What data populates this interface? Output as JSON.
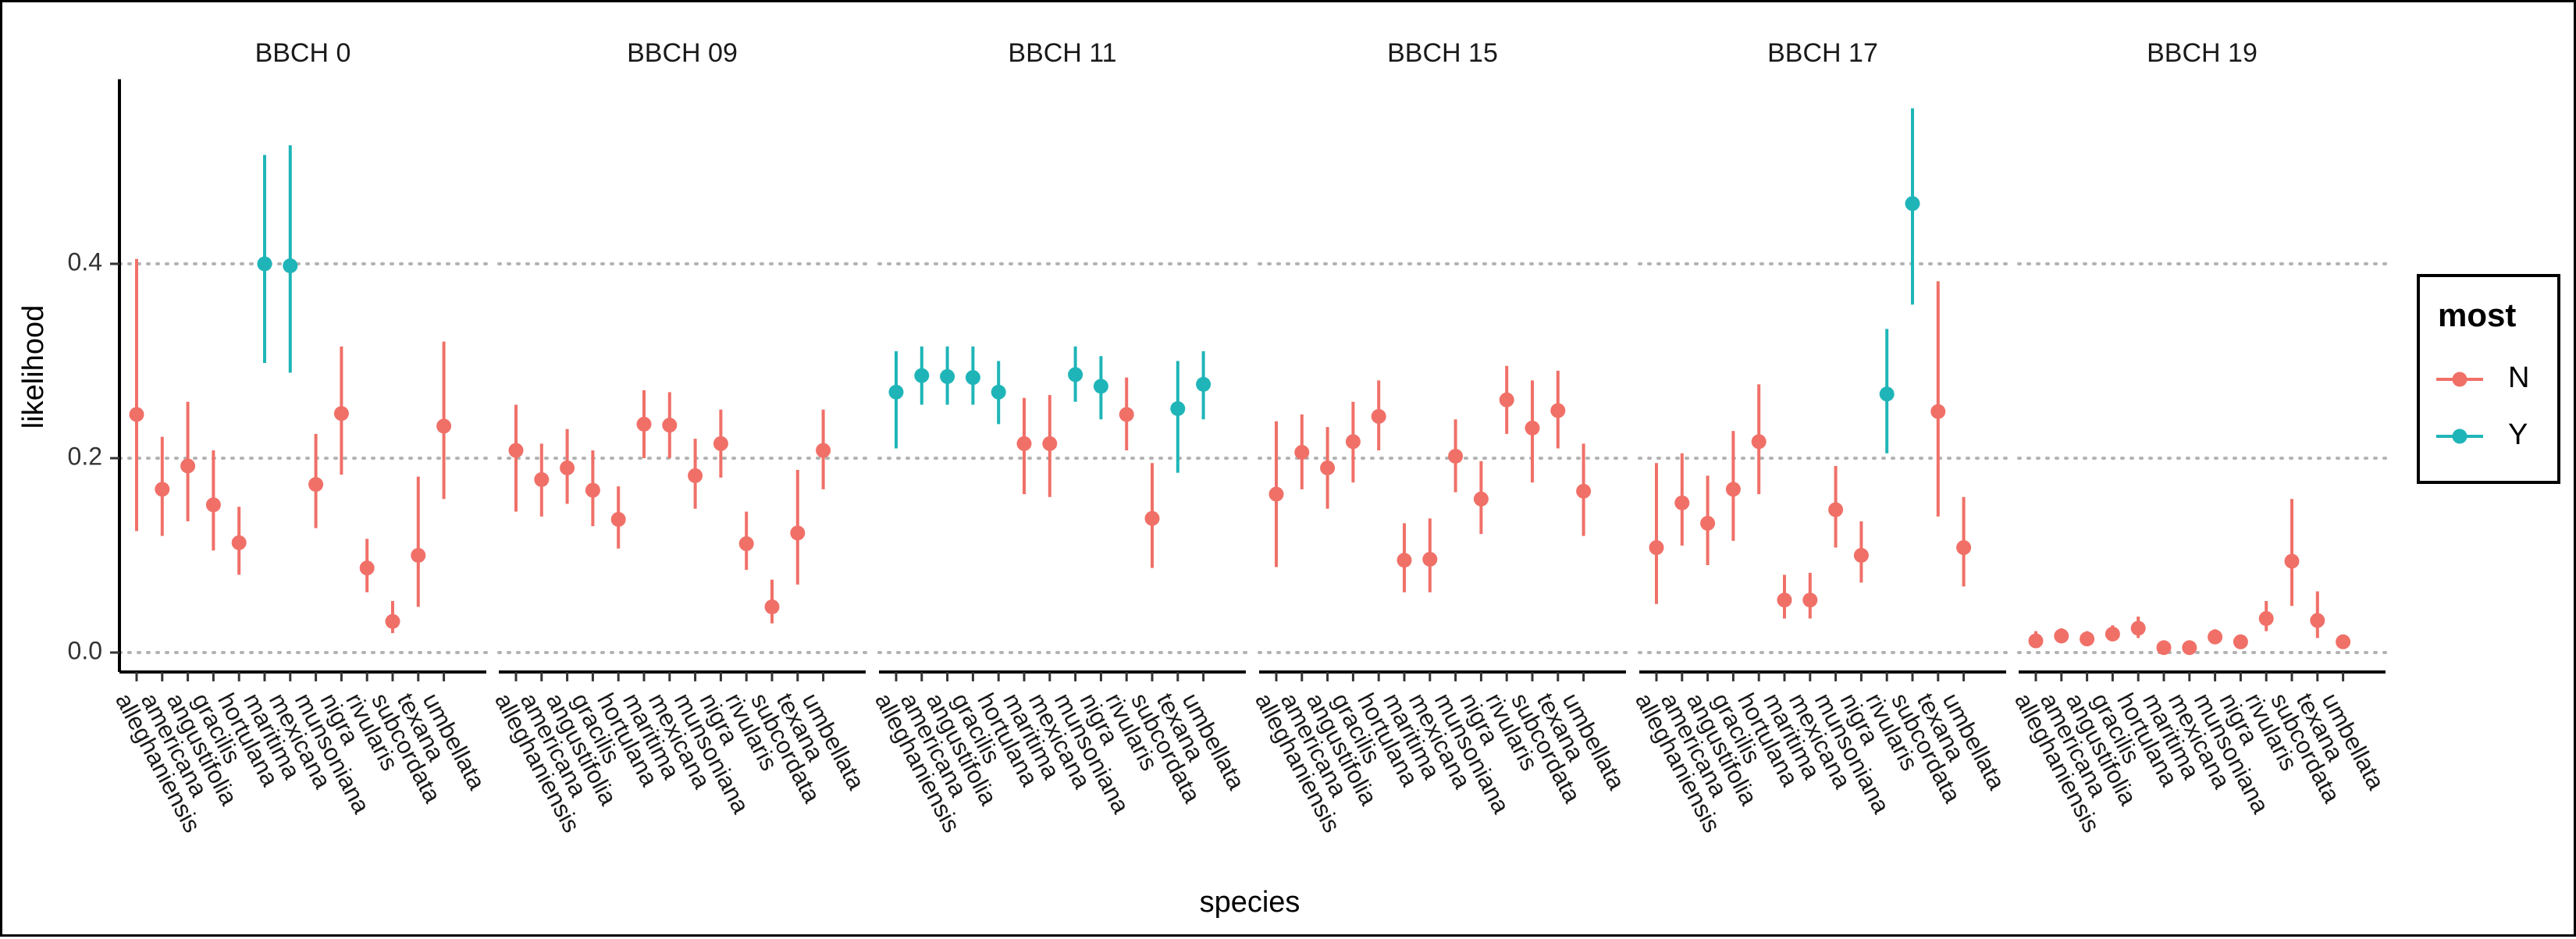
{
  "chart_data": {
    "type": "scatter",
    "xlabel": "species",
    "ylabel": "likelihood",
    "ylim": [
      -0.02,
      0.59
    ],
    "yticks": [
      "0.0",
      "0.2",
      "0.4"
    ],
    "ytick_values": [
      0.0,
      0.2,
      0.4
    ],
    "grid": "horizontal dotted at y ticks",
    "species": [
      "alleghaniensis",
      "americana",
      "angustifolia",
      "gracilis",
      "hortulana",
      "maritima",
      "mexicana",
      "munsoniana",
      "nigra",
      "rivularis",
      "subcordata",
      "texana",
      "umbellata"
    ],
    "legend": {
      "title": "most",
      "position": "right",
      "items": [
        {
          "label": "N",
          "color": "#F07068"
        },
        {
          "label": "Y",
          "color": "#1FB5B8"
        }
      ]
    },
    "panels": [
      {
        "label": "BBCH 0",
        "points": [
          {
            "y": 0.245,
            "lo": 0.125,
            "hi": 0.405,
            "most": "N"
          },
          {
            "y": 0.168,
            "lo": 0.12,
            "hi": 0.222,
            "most": "N"
          },
          {
            "y": 0.192,
            "lo": 0.135,
            "hi": 0.258,
            "most": "N"
          },
          {
            "y": 0.152,
            "lo": 0.105,
            "hi": 0.208,
            "most": "N"
          },
          {
            "y": 0.113,
            "lo": 0.08,
            "hi": 0.15,
            "most": "N"
          },
          {
            "y": 0.4,
            "lo": 0.298,
            "hi": 0.512,
            "most": "Y"
          },
          {
            "y": 0.398,
            "lo": 0.288,
            "hi": 0.522,
            "most": "Y"
          },
          {
            "y": 0.173,
            "lo": 0.128,
            "hi": 0.225,
            "most": "N"
          },
          {
            "y": 0.246,
            "lo": 0.183,
            "hi": 0.315,
            "most": "N"
          },
          {
            "y": 0.087,
            "lo": 0.062,
            "hi": 0.117,
            "most": "N"
          },
          {
            "y": 0.032,
            "lo": 0.02,
            "hi": 0.053,
            "most": "N"
          },
          {
            "y": 0.1,
            "lo": 0.047,
            "hi": 0.181,
            "most": "N"
          },
          {
            "y": 0.233,
            "lo": 0.158,
            "hi": 0.32,
            "most": "N"
          }
        ]
      },
      {
        "label": "BBCH 09",
        "points": [
          {
            "y": 0.208,
            "lo": 0.145,
            "hi": 0.255,
            "most": "N"
          },
          {
            "y": 0.178,
            "lo": 0.14,
            "hi": 0.215,
            "most": "N"
          },
          {
            "y": 0.19,
            "lo": 0.153,
            "hi": 0.23,
            "most": "N"
          },
          {
            "y": 0.167,
            "lo": 0.13,
            "hi": 0.208,
            "most": "N"
          },
          {
            "y": 0.137,
            "lo": 0.107,
            "hi": 0.171,
            "most": "N"
          },
          {
            "y": 0.235,
            "lo": 0.2,
            "hi": 0.27,
            "most": "N"
          },
          {
            "y": 0.234,
            "lo": 0.2,
            "hi": 0.268,
            "most": "N"
          },
          {
            "y": 0.182,
            "lo": 0.148,
            "hi": 0.22,
            "most": "N"
          },
          {
            "y": 0.215,
            "lo": 0.18,
            "hi": 0.25,
            "most": "N"
          },
          {
            "y": 0.112,
            "lo": 0.085,
            "hi": 0.145,
            "most": "N"
          },
          {
            "y": 0.047,
            "lo": 0.03,
            "hi": 0.075,
            "most": "N"
          },
          {
            "y": 0.123,
            "lo": 0.07,
            "hi": 0.188,
            "most": "N"
          },
          {
            "y": 0.208,
            "lo": 0.168,
            "hi": 0.25,
            "most": "N"
          }
        ]
      },
      {
        "label": "BBCH 11",
        "points": [
          {
            "y": 0.268,
            "lo": 0.21,
            "hi": 0.31,
            "most": "Y"
          },
          {
            "y": 0.285,
            "lo": 0.255,
            "hi": 0.315,
            "most": "Y"
          },
          {
            "y": 0.284,
            "lo": 0.255,
            "hi": 0.315,
            "most": "Y"
          },
          {
            "y": 0.283,
            "lo": 0.255,
            "hi": 0.315,
            "most": "Y"
          },
          {
            "y": 0.268,
            "lo": 0.235,
            "hi": 0.3,
            "most": "Y"
          },
          {
            "y": 0.215,
            "lo": 0.163,
            "hi": 0.262,
            "most": "N"
          },
          {
            "y": 0.215,
            "lo": 0.16,
            "hi": 0.265,
            "most": "N"
          },
          {
            "y": 0.286,
            "lo": 0.258,
            "hi": 0.315,
            "most": "Y"
          },
          {
            "y": 0.274,
            "lo": 0.24,
            "hi": 0.305,
            "most": "Y"
          },
          {
            "y": 0.245,
            "lo": 0.208,
            "hi": 0.283,
            "most": "N"
          },
          {
            "y": 0.138,
            "lo": 0.087,
            "hi": 0.195,
            "most": "N"
          },
          {
            "y": 0.251,
            "lo": 0.185,
            "hi": 0.3,
            "most": "Y"
          },
          {
            "y": 0.276,
            "lo": 0.24,
            "hi": 0.31,
            "most": "Y"
          }
        ]
      },
      {
        "label": "BBCH 15",
        "points": [
          {
            "y": 0.163,
            "lo": 0.088,
            "hi": 0.238,
            "most": "N"
          },
          {
            "y": 0.206,
            "lo": 0.168,
            "hi": 0.245,
            "most": "N"
          },
          {
            "y": 0.19,
            "lo": 0.148,
            "hi": 0.232,
            "most": "N"
          },
          {
            "y": 0.217,
            "lo": 0.175,
            "hi": 0.258,
            "most": "N"
          },
          {
            "y": 0.243,
            "lo": 0.208,
            "hi": 0.28,
            "most": "N"
          },
          {
            "y": 0.095,
            "lo": 0.062,
            "hi": 0.133,
            "most": "N"
          },
          {
            "y": 0.096,
            "lo": 0.062,
            "hi": 0.138,
            "most": "N"
          },
          {
            "y": 0.202,
            "lo": 0.165,
            "hi": 0.24,
            "most": "N"
          },
          {
            "y": 0.158,
            "lo": 0.122,
            "hi": 0.197,
            "most": "N"
          },
          {
            "y": 0.26,
            "lo": 0.225,
            "hi": 0.295,
            "most": "N"
          },
          {
            "y": 0.231,
            "lo": 0.175,
            "hi": 0.28,
            "most": "N"
          },
          {
            "y": 0.249,
            "lo": 0.21,
            "hi": 0.29,
            "most": "N"
          },
          {
            "y": 0.166,
            "lo": 0.12,
            "hi": 0.215,
            "most": "N"
          }
        ]
      },
      {
        "label": "BBCH 17",
        "points": [
          {
            "y": 0.108,
            "lo": 0.05,
            "hi": 0.195,
            "most": "N"
          },
          {
            "y": 0.154,
            "lo": 0.11,
            "hi": 0.205,
            "most": "N"
          },
          {
            "y": 0.133,
            "lo": 0.09,
            "hi": 0.182,
            "most": "N"
          },
          {
            "y": 0.168,
            "lo": 0.115,
            "hi": 0.228,
            "most": "N"
          },
          {
            "y": 0.217,
            "lo": 0.163,
            "hi": 0.276,
            "most": "N"
          },
          {
            "y": 0.054,
            "lo": 0.035,
            "hi": 0.08,
            "most": "N"
          },
          {
            "y": 0.054,
            "lo": 0.035,
            "hi": 0.082,
            "most": "N"
          },
          {
            "y": 0.147,
            "lo": 0.108,
            "hi": 0.192,
            "most": "N"
          },
          {
            "y": 0.1,
            "lo": 0.072,
            "hi": 0.135,
            "most": "N"
          },
          {
            "y": 0.266,
            "lo": 0.205,
            "hi": 0.333,
            "most": "Y"
          },
          {
            "y": 0.462,
            "lo": 0.358,
            "hi": 0.56,
            "most": "Y"
          },
          {
            "y": 0.248,
            "lo": 0.14,
            "hi": 0.382,
            "most": "N"
          },
          {
            "y": 0.108,
            "lo": 0.068,
            "hi": 0.16,
            "most": "N"
          }
        ]
      },
      {
        "label": "BBCH 19",
        "points": [
          {
            "y": 0.012,
            "lo": 0.005,
            "hi": 0.022,
            "most": "N"
          },
          {
            "y": 0.017,
            "lo": 0.01,
            "hi": 0.025,
            "most": "N"
          },
          {
            "y": 0.014,
            "lo": 0.008,
            "hi": 0.022,
            "most": "N"
          },
          {
            "y": 0.019,
            "lo": 0.012,
            "hi": 0.028,
            "most": "N"
          },
          {
            "y": 0.025,
            "lo": 0.015,
            "hi": 0.037,
            "most": "N"
          },
          {
            "y": 0.005,
            "lo": 0.002,
            "hi": 0.01,
            "most": "N"
          },
          {
            "y": 0.005,
            "lo": 0.002,
            "hi": 0.01,
            "most": "N"
          },
          {
            "y": 0.016,
            "lo": 0.01,
            "hi": 0.024,
            "most": "N"
          },
          {
            "y": 0.011,
            "lo": 0.006,
            "hi": 0.018,
            "most": "N"
          },
          {
            "y": 0.035,
            "lo": 0.022,
            "hi": 0.053,
            "most": "N"
          },
          {
            "y": 0.094,
            "lo": 0.048,
            "hi": 0.158,
            "most": "N"
          },
          {
            "y": 0.033,
            "lo": 0.015,
            "hi": 0.063,
            "most": "N"
          },
          {
            "y": 0.011,
            "lo": 0.006,
            "hi": 0.018,
            "most": "N"
          }
        ]
      }
    ]
  }
}
